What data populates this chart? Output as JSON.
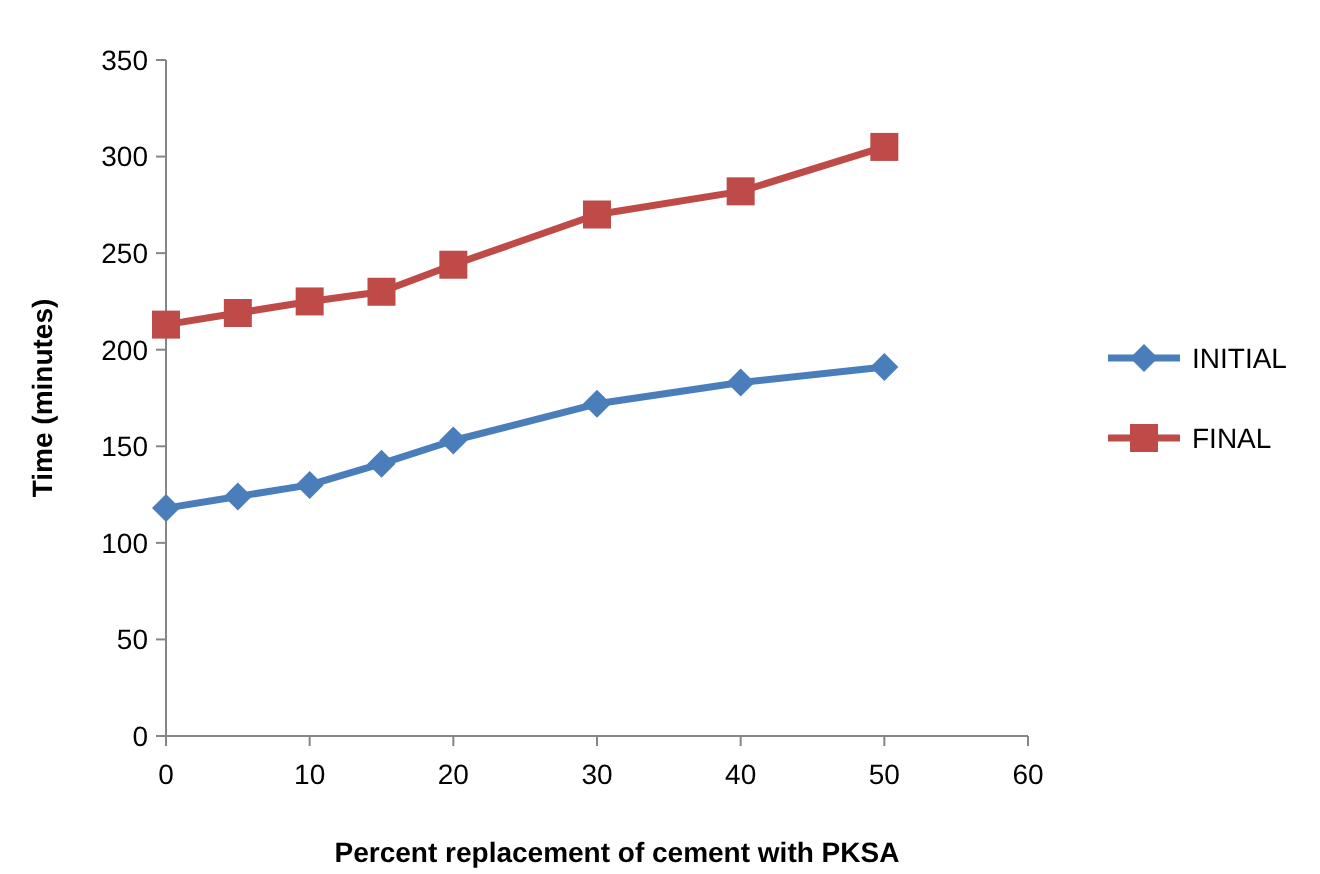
{
  "chart_data": {
    "type": "line",
    "xlabel": "Percent replacement of cement with PKSA",
    "ylabel": "Time (minutes)",
    "xlim": [
      0,
      60
    ],
    "xticks": [
      0,
      10,
      20,
      30,
      40,
      50,
      60
    ],
    "ylim": [
      0,
      350
    ],
    "yticks": [
      0,
      50,
      100,
      150,
      200,
      250,
      300,
      350
    ],
    "grid": false,
    "legend": "right",
    "series": [
      {
        "name": "INITIAL",
        "color": "#4a7ebb",
        "marker": "diamond",
        "x": [
          0,
          5,
          10,
          15,
          20,
          30,
          40,
          50
        ],
        "values": [
          118,
          124,
          130,
          141,
          153,
          172,
          183,
          191
        ]
      },
      {
        "name": "FINAL",
        "color": "#be4b48",
        "marker": "square",
        "x": [
          0,
          5,
          10,
          15,
          20,
          30,
          40,
          50
        ],
        "values": [
          213,
          219,
          225,
          230,
          244,
          270,
          282,
          305
        ]
      }
    ]
  }
}
